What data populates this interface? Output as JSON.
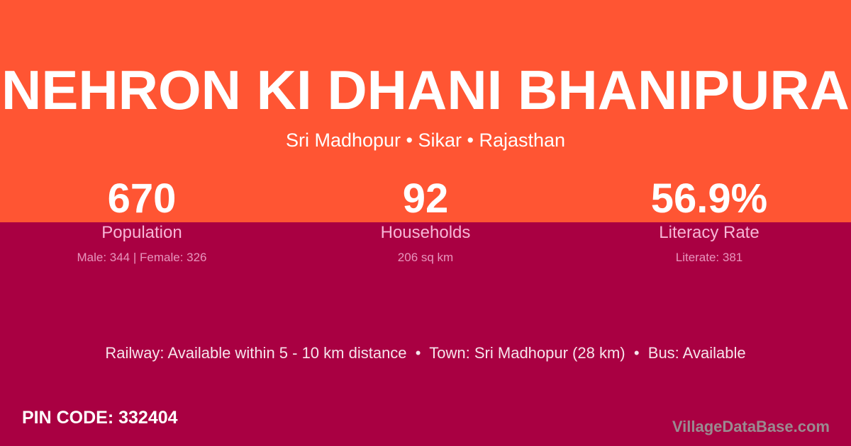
{
  "header": {
    "title": "NEHRON KI DHANI BHANIPURA",
    "location": "Sri Madhopur • Sikar • Rajasthan"
  },
  "stats": [
    {
      "value": "670",
      "label": "Population",
      "detail": "Male: 344 | Female: 326"
    },
    {
      "value": "92",
      "label": "Households",
      "detail": "206 sq km"
    },
    {
      "value": "56.9%",
      "label": "Literacy Rate",
      "detail": "Literate: 381"
    }
  ],
  "connectivity": "Railway: Available within 5 - 10 km distance  •  Town: Sri Madhopur (28 km)  •  Bus: Available",
  "pin_code": "PIN CODE: 332404",
  "brand": "VillageDataBase.com",
  "colors": {
    "top": "#ff5533",
    "bottom": "#a90042"
  }
}
